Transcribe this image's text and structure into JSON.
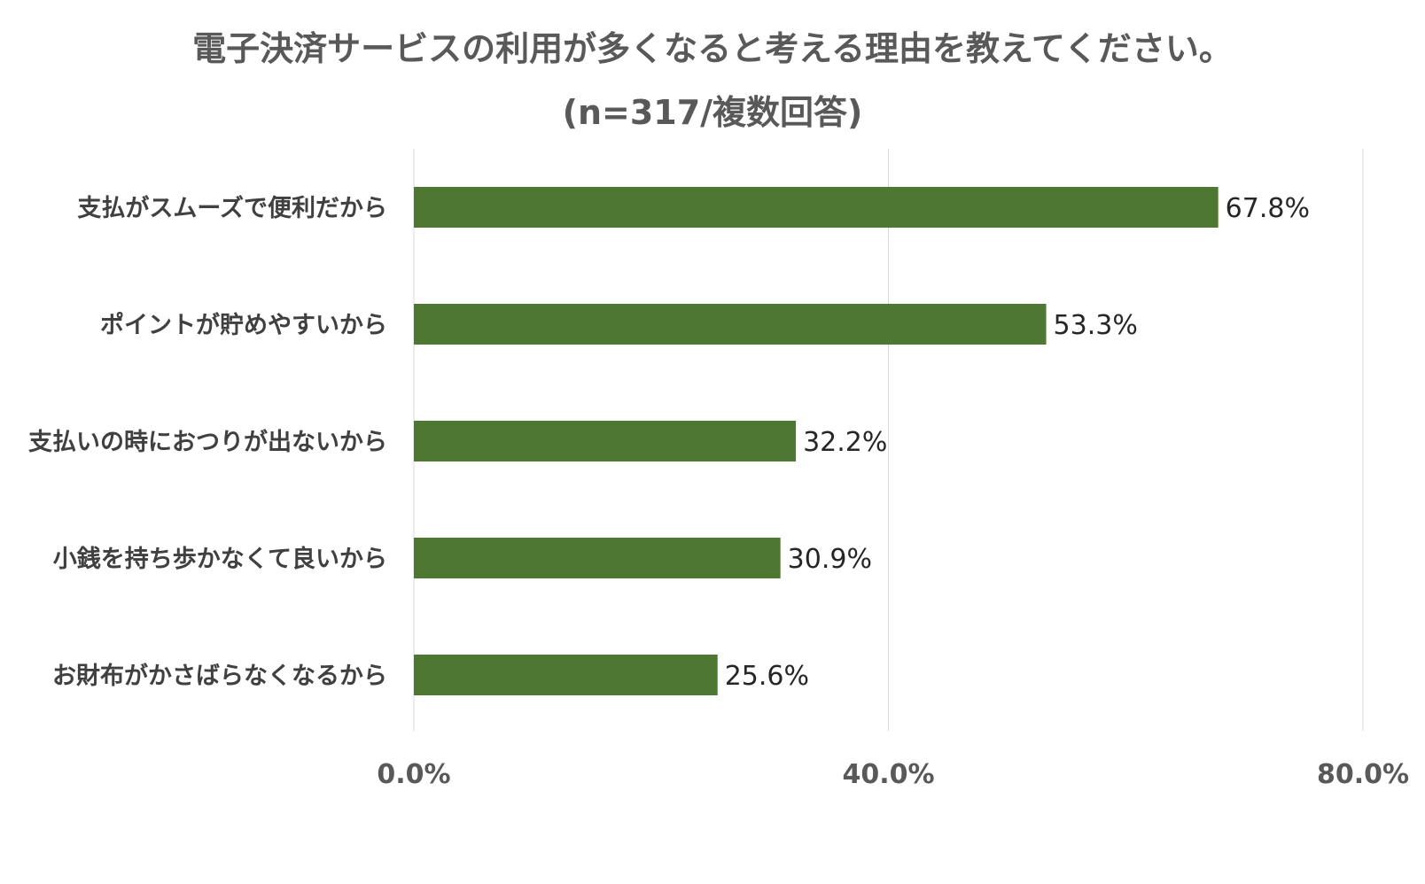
{
  "chart_data": {
    "type": "bar",
    "orientation": "horizontal",
    "title": "電子決済サービスの利用が多くなると考える理由を教えてください。",
    "subtitle": "(n=317/複数回答)",
    "categories": [
      "支払がスムーズで便利だから",
      "ポイントが貯めやすいから",
      "支払いの時におつりが出ないから",
      "小銭を持ち歩かなくて良いから",
      "お財布がかさばらなくなるから"
    ],
    "values": [
      67.8,
      53.3,
      32.2,
      30.9,
      25.6
    ],
    "value_labels": [
      "67.8%",
      "53.3%",
      "32.2%",
      "30.9%",
      "25.6%"
    ],
    "xlim": [
      0,
      80
    ],
    "x_ticks": [
      0,
      40,
      80
    ],
    "x_tick_labels": [
      "0.0%",
      "40.0%",
      "80.0%"
    ],
    "grid": true,
    "legend": "none",
    "bar_color": "#4E7731",
    "grid_color": "#D9D9D9"
  }
}
